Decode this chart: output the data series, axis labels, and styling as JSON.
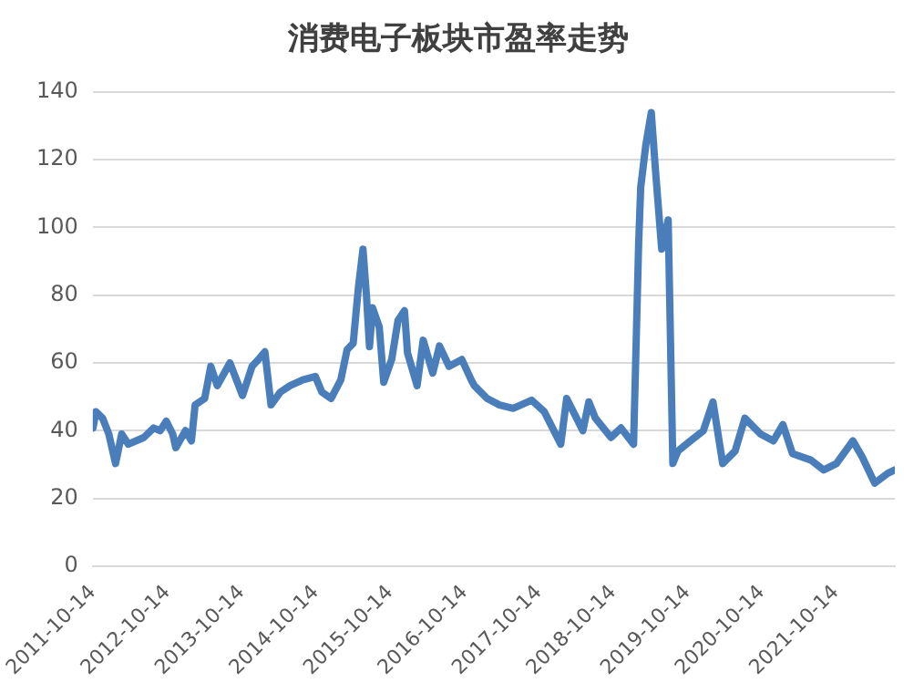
{
  "chart_data": {
    "type": "line",
    "title": "消费电子板块市盈率走势",
    "x": [
      "2011-10-15",
      "2011-10-30",
      "2011-12-01",
      "2012-01-01",
      "2012-02-03",
      "2012-03-04",
      "2012-04-06",
      "2012-06-21",
      "2012-08-08",
      "2012-09-09",
      "2012-10-09",
      "2012-11-10",
      "2012-11-25",
      "2013-01-12",
      "2013-02-10",
      "2013-02-28",
      "2013-04-16",
      "2013-05-16",
      "2013-06-17",
      "2013-08-18",
      "2013-10-19",
      "2013-12-05",
      "2014-01-05",
      "2014-02-06",
      "2014-03-08",
      "2014-04-23",
      "2014-06-10",
      "2014-08-11",
      "2014-10-12",
      "2014-11-13",
      "2014-12-28",
      "2015-02-14",
      "2015-03-17",
      "2015-04-16",
      "2015-05-11",
      "2015-06-03",
      "2015-06-20",
      "2015-07-05",
      "2015-07-20",
      "2015-08-22",
      "2015-09-13",
      "2015-10-22",
      "2015-11-22",
      "2015-12-24",
      "2016-01-08",
      "2016-02-24",
      "2016-03-25",
      "2016-05-11",
      "2016-06-13",
      "2016-07-30",
      "2016-10-01",
      "2016-11-16",
      "2016-12-01",
      "2017-02-02",
      "2017-04-04",
      "2017-06-10",
      "2017-09-09",
      "2017-11-10",
      "2018-01-30",
      "2018-02-28",
      "2018-05-19",
      "2018-06-17",
      "2018-07-19",
      "2018-10-04",
      "2018-11-22",
      "2019-01-23",
      "2019-02-17",
      "2019-02-27",
      "2019-03-24",
      "2019-04-20",
      "2019-05-11",
      "2019-06-10",
      "2019-07-12",
      "2019-08-04",
      "2019-08-29",
      "2019-10-30",
      "2020-01-01",
      "2020-02-17",
      "2020-04-05",
      "2020-06-05",
      "2020-07-23",
      "2020-10-08",
      "2020-12-10",
      "2021-01-26",
      "2021-03-14",
      "2021-06-13",
      "2021-08-14",
      "2021-10-16",
      "2022-01-05",
      "2022-02-20",
      "2022-04-22",
      "2022-06-25",
      "2022-07-30"
    ],
    "series": [
      {
        "color": "#4a7ebb",
        "values": [
          40.8,
          45.6,
          43.7,
          39,
          30.3,
          39,
          36,
          38,
          40.8,
          40,
          42.8,
          39,
          35,
          40,
          37,
          47.6,
          49.5,
          59,
          53.3,
          60,
          50.4,
          59,
          61,
          63.3,
          47.6,
          51.4,
          53.3,
          55,
          56,
          51.4,
          49.5,
          55,
          63.9,
          65.8,
          82,
          93.6,
          80,
          64.8,
          76.3,
          70.6,
          54.3,
          61,
          72.5,
          75.4,
          62.9,
          53.3,
          66.7,
          57,
          65,
          59,
          61,
          55,
          53.3,
          49.5,
          47.6,
          46.6,
          49,
          45.6,
          36,
          49.5,
          40,
          48.5,
          43.7,
          38,
          40.8,
          36,
          95.5,
          111.8,
          124.3,
          133.9,
          116.6,
          93.6,
          102.2,
          30.3,
          34,
          37,
          40,
          48.5,
          30.3,
          34,
          43.7,
          39,
          37,
          41.8,
          33.2,
          31.3,
          28.4,
          30.3,
          37,
          32.2,
          24.5,
          27.4,
          28.4
        ]
      }
    ],
    "xlim": [
      "2011-10-14",
      "2022-07-30"
    ],
    "xticks": [
      {
        "value": "2011-10-14",
        "label": "2011-10-14"
      },
      {
        "value": "2012-10-14",
        "label": "2012-10-14"
      },
      {
        "value": "2013-10-14",
        "label": "2013-10-14"
      },
      {
        "value": "2014-10-14",
        "label": "2014-10-14"
      },
      {
        "value": "2015-10-14",
        "label": "2015-10-14"
      },
      {
        "value": "2016-10-14",
        "label": "2016-10-14"
      },
      {
        "value": "2017-10-14",
        "label": "2017-10-14"
      },
      {
        "value": "2018-10-14",
        "label": "2018-10-14"
      },
      {
        "value": "2019-10-14",
        "label": "2019-10-14"
      },
      {
        "value": "2020-10-14",
        "label": "2020-10-14"
      },
      {
        "value": "2021-10-14",
        "label": "2021-10-14"
      }
    ],
    "ylim": [
      0,
      140
    ],
    "yticks": [
      0,
      20,
      40,
      60,
      80,
      100,
      120,
      140
    ],
    "grid": "y",
    "legend": false,
    "marker": "none",
    "line_style": "solid"
  }
}
